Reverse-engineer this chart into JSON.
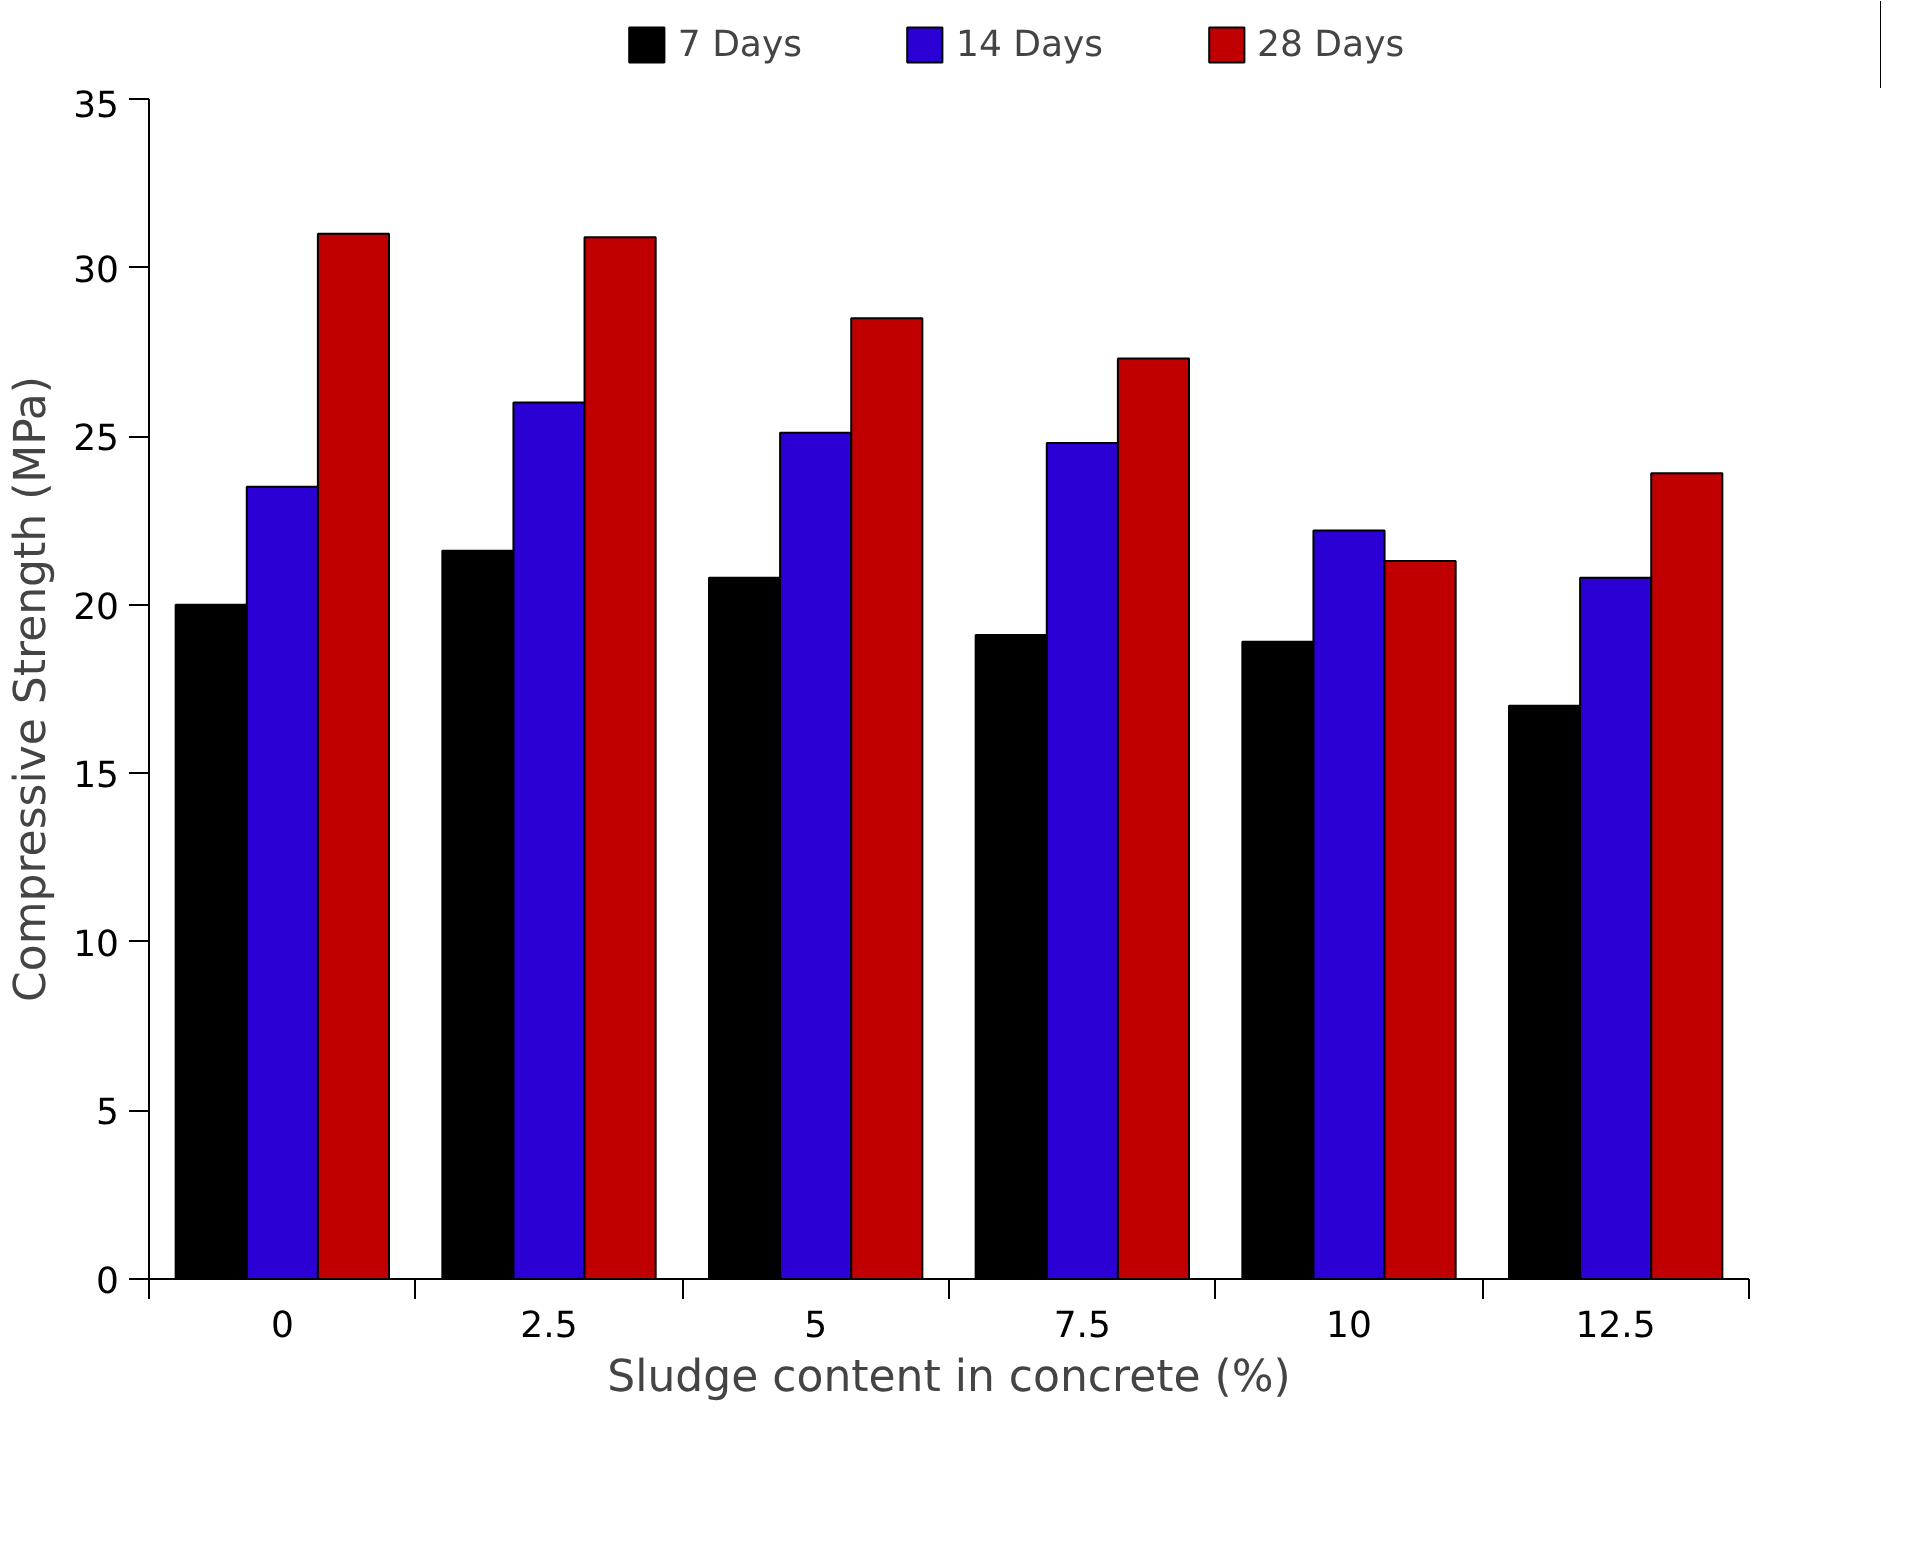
{
  "chart_data": {
    "type": "bar",
    "xlabel": "Sludge content in concrete (%)",
    "ylabel": "Compressive Strength (MPa)",
    "categories": [
      "0",
      "2.5",
      "5",
      "7.5",
      "10",
      "12.5"
    ],
    "series": [
      {
        "name": "7 Days",
        "color": "#000000",
        "values": [
          20.0,
          21.6,
          20.8,
          19.1,
          18.9,
          17.0
        ]
      },
      {
        "name": "14 Days",
        "color": "#2a00d4",
        "values": [
          23.5,
          26.0,
          25.1,
          24.8,
          22.2,
          20.8
        ]
      },
      {
        "name": "28 Days",
        "color": "#c00000",
        "values": [
          31.0,
          30.9,
          28.5,
          27.3,
          21.3,
          23.9
        ]
      }
    ],
    "ylim": [
      0,
      35
    ],
    "yticks": [
      0,
      5,
      10,
      15,
      20,
      25,
      30,
      35
    ],
    "grid": false,
    "legend": "top"
  }
}
